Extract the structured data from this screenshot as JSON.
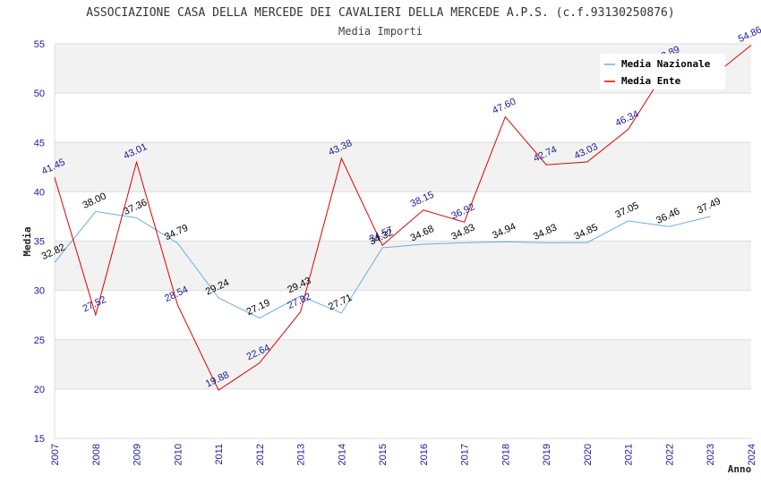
{
  "chart_data": {
    "type": "line",
    "title": "ASSOCIAZIONE CASA DELLA MERCEDE DEI CAVALIERI DELLA MERCEDE A.P.S. (c.f.93130250876)",
    "subtitle": "Media Importi",
    "xlabel": "Anno",
    "ylabel": "Media",
    "ylim": [
      15,
      55
    ],
    "yticks": [
      15,
      20,
      25,
      30,
      35,
      40,
      45,
      50,
      55
    ],
    "categories": [
      "2007",
      "2008",
      "2009",
      "2010",
      "2011",
      "2012",
      "2013",
      "2014",
      "2015",
      "2016",
      "2017",
      "2018",
      "2019",
      "2020",
      "2021",
      "2022",
      "2023",
      "2024"
    ],
    "series": [
      {
        "name": "Media Nazionale",
        "color": "#6aaee6",
        "values": [
          32.82,
          38.0,
          37.36,
          34.79,
          29.24,
          27.19,
          29.43,
          27.71,
          34.32,
          34.68,
          34.83,
          34.94,
          34.83,
          34.85,
          37.05,
          36.46,
          37.49,
          null
        ],
        "labels": [
          "32.82",
          "38.00",
          "37.36",
          "34.79",
          "29.24",
          "27.19",
          "29.43",
          "27.71",
          "34.32",
          "34.68",
          "34.83",
          "34.94",
          "34.83",
          "34.85",
          "37.05",
          "36.46",
          "37.49",
          null
        ]
      },
      {
        "name": "Media Ente",
        "color": "#e00000",
        "values": [
          41.45,
          27.52,
          43.01,
          28.54,
          19.88,
          22.64,
          27.82,
          43.38,
          34.57,
          38.15,
          36.92,
          47.6,
          42.74,
          43.03,
          46.34,
          52.89,
          51.5,
          54.86
        ],
        "labels": [
          "41.45",
          "27.52",
          "43.01",
          "28.54",
          "19.88",
          "22.64",
          "27.82",
          "43.38",
          "34.57",
          "38.15",
          "36.92",
          "47.60",
          "42.74",
          "43.03",
          "46.34",
          "52.89",
          null,
          "54.86"
        ]
      }
    ],
    "legend_position": "top-right",
    "grid": true
  }
}
